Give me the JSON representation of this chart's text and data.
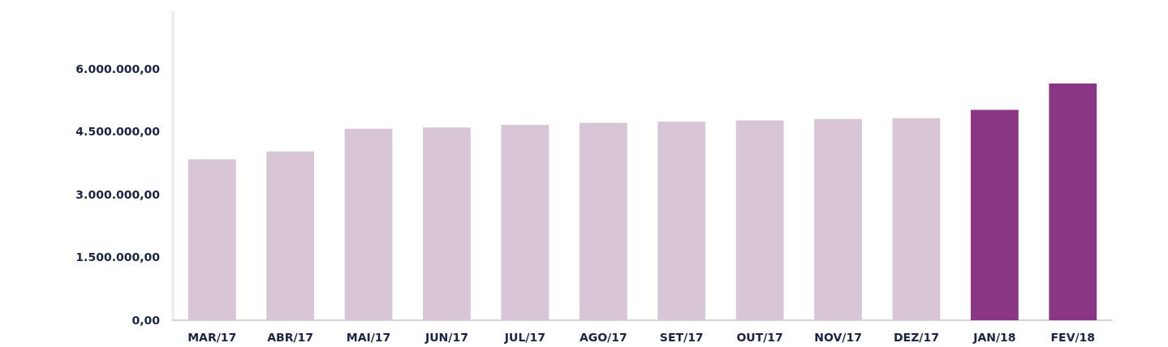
{
  "chart_data": {
    "type": "bar",
    "categories": [
      "MAR/17",
      "ABR/17",
      "MAI/17",
      "JUN/17",
      "JUL/17",
      "AGO/17",
      "SET/17",
      "OUT/17",
      "NOV/17",
      "DEZ/17",
      "JAN/18",
      "FEV/18"
    ],
    "values": [
      3840000,
      4030000,
      4570000,
      4600000,
      4660000,
      4710000,
      4740000,
      4770000,
      4800000,
      4820000,
      5020000,
      5650000
    ],
    "colors": [
      "#d8c6d6",
      "#d8c6d6",
      "#d8c6d6",
      "#d8c6d6",
      "#d8c6d6",
      "#d8c6d6",
      "#d8c6d6",
      "#d8c6d6",
      "#d8c6d6",
      "#d8c6d6",
      "#8b3585",
      "#8b3585"
    ],
    "ylim": [
      0,
      7350000
    ],
    "yticks": [
      {
        "value": 0,
        "label": "0,00"
      },
      {
        "value": 1500000,
        "label": "1.500.000,00"
      },
      {
        "value": 3000000,
        "label": "3.000.000,00"
      },
      {
        "value": 4500000,
        "label": "4.500.000,00"
      },
      {
        "value": 6000000,
        "label": "6.000.000,00"
      }
    ],
    "grid": false
  }
}
